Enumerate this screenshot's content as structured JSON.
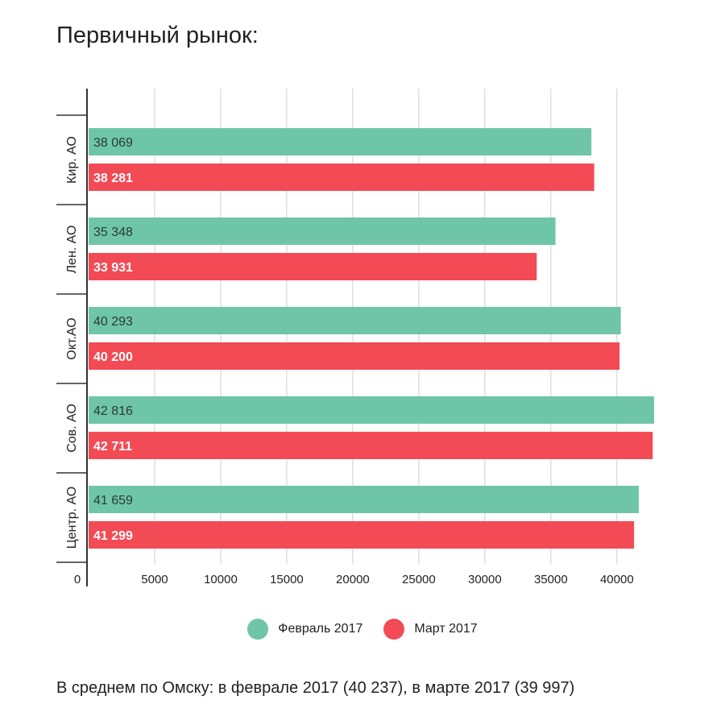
{
  "chart_data": {
    "type": "bar",
    "orientation": "horizontal",
    "title": "Первичный рынок:",
    "categories": [
      "Кир. АО",
      "Лен. АО",
      "Окт.АО",
      "Сов. АО",
      "Центр. АО"
    ],
    "series": [
      {
        "name": "Февраль 2017",
        "color": "#6fc5a8",
        "values": [
          38069,
          35348,
          40293,
          42816,
          41659
        ],
        "labels": [
          "38 069",
          "35 348",
          "40 293",
          "42 816",
          "41 659"
        ]
      },
      {
        "name": "Март 2017",
        "color": "#f24b55",
        "values": [
          38281,
          33931,
          40200,
          42711,
          41299
        ],
        "labels": [
          "38 281",
          "33 931",
          "40 200",
          "42 711",
          "41 299"
        ]
      }
    ],
    "xlim": [
      0,
      43000
    ],
    "xticks": [
      0,
      5000,
      10000,
      15000,
      20000,
      25000,
      30000,
      35000,
      40000
    ],
    "xtick_labels": [
      "0",
      "5000",
      "10000",
      "15000",
      "20000",
      "25000",
      "30000",
      "35000",
      "40000"
    ],
    "grid": true,
    "legend_position": "bottom-center"
  },
  "footnote": "В среднем по Омску: в феврале 2017 (40 237), в марте 2017 (39 997)"
}
